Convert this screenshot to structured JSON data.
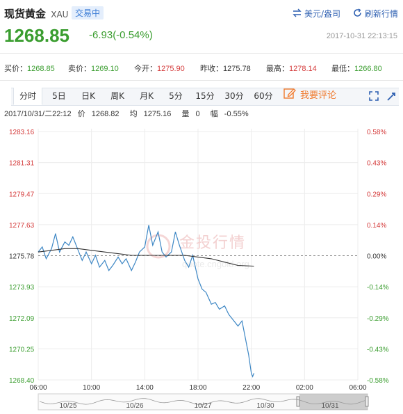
{
  "header": {
    "title": "现货黄金",
    "code": "XAU",
    "badge": "交易中",
    "currency_link": "美元/盎司",
    "refresh_link": "刷新行情"
  },
  "quote": {
    "price": "1268.85",
    "change": "-6.93(-0.54%)",
    "timestamp": "2017-10-31 22:13:15"
  },
  "stats": [
    {
      "label": "买价：",
      "value": "1268.85",
      "tone": "green"
    },
    {
      "label": "卖价：",
      "value": "1269.10",
      "tone": "green"
    },
    {
      "label": "今开：",
      "value": "1275.90",
      "tone": "red"
    },
    {
      "label": "昨收：",
      "value": "1275.78",
      "tone": "plain"
    },
    {
      "label": "最高：",
      "value": "1278.14",
      "tone": "red"
    },
    {
      "label": "最低：",
      "value": "1266.80",
      "tone": "green"
    }
  ],
  "tabs": [
    "分时",
    "5日",
    "日K",
    "周K",
    "月K",
    "5分",
    "15分",
    "30分",
    "60分"
  ],
  "active_tab": "分时",
  "comment_label": "我要评论",
  "info_bar": {
    "datetime": "2017/10/31/二22:12",
    "price_label": "价",
    "price": "1268.82",
    "avg_label": "均",
    "avg": "1275.16",
    "vol_label": "量",
    "vol": "0",
    "amp_label": "幅",
    "amp": "-0.55%"
  },
  "watermark": {
    "text": "金投行情",
    "url": "quote.cngold.org"
  },
  "colors": {
    "up": "#d43a3a",
    "down": "#3a9d2f",
    "line": "#3c86c4",
    "avg": "#333333",
    "accent": "#3a7bd5"
  },
  "chart_data": {
    "type": "line",
    "base_price": 1275.78,
    "ylim": [
      1268.4,
      1283.16
    ],
    "y_ticks_left": [
      "1283.16",
      "1281.31",
      "1279.47",
      "1277.63",
      "1275.78",
      "1273.93",
      "1272.09",
      "1270.25",
      "1268.40"
    ],
    "y_ticks_right": [
      "0.58%",
      "0.43%",
      "0.29%",
      "0.14%",
      "0.00%",
      "-0.14%",
      "-0.29%",
      "-0.43%",
      "-0.58%"
    ],
    "x_ticks": [
      "06:00",
      "10:00",
      "14:00",
      "18:00",
      "22:00",
      "02:00",
      "06:00"
    ],
    "x_range_hours": [
      6,
      30
    ],
    "series": [
      {
        "name": "价",
        "x": [
          6.0,
          6.3,
          6.6,
          7.0,
          7.3,
          7.6,
          8.0,
          8.3,
          8.6,
          9.0,
          9.3,
          9.6,
          10.0,
          10.3,
          10.6,
          11.0,
          11.3,
          11.6,
          12.0,
          12.3,
          12.6,
          13.0,
          13.3,
          13.6,
          14.0,
          14.3,
          14.6,
          15.0,
          15.3,
          15.6,
          16.0,
          16.3,
          16.6,
          17.0,
          17.3,
          17.6,
          18.0,
          18.3,
          18.6,
          19.0,
          19.3,
          19.6,
          20.0,
          20.3,
          20.6,
          21.0,
          21.3,
          21.6,
          21.8,
          22.0,
          22.1,
          22.2
        ],
        "values": [
          1276.0,
          1276.3,
          1275.6,
          1276.2,
          1277.1,
          1276.0,
          1276.6,
          1276.4,
          1276.9,
          1276.1,
          1275.5,
          1276.0,
          1275.3,
          1275.8,
          1275.1,
          1275.5,
          1274.9,
          1275.2,
          1275.7,
          1275.3,
          1275.6,
          1274.9,
          1275.4,
          1276.0,
          1276.3,
          1277.6,
          1276.4,
          1277.2,
          1276.0,
          1275.7,
          1276.0,
          1277.2,
          1276.4,
          1275.5,
          1275.1,
          1275.8,
          1274.4,
          1273.8,
          1273.6,
          1272.9,
          1273.0,
          1272.6,
          1272.8,
          1272.3,
          1272.0,
          1271.6,
          1271.9,
          1270.7,
          1269.9,
          1268.8,
          1268.6,
          1268.8
        ]
      },
      {
        "name": "均",
        "x": [
          6.0,
          7.0,
          8.0,
          9.0,
          10.0,
          11.0,
          12.0,
          13.0,
          14.0,
          15.0,
          16.0,
          17.0,
          18.0,
          19.0,
          20.0,
          21.0,
          22.2
        ],
        "values": [
          1276.0,
          1276.1,
          1276.2,
          1276.2,
          1276.1,
          1276.0,
          1275.9,
          1275.8,
          1275.8,
          1275.8,
          1275.8,
          1275.8,
          1275.7,
          1275.6,
          1275.4,
          1275.2,
          1275.16
        ]
      }
    ],
    "navigator_dates": [
      "10/25",
      "10/26",
      "10/27",
      "10/30",
      "10/31"
    ]
  }
}
